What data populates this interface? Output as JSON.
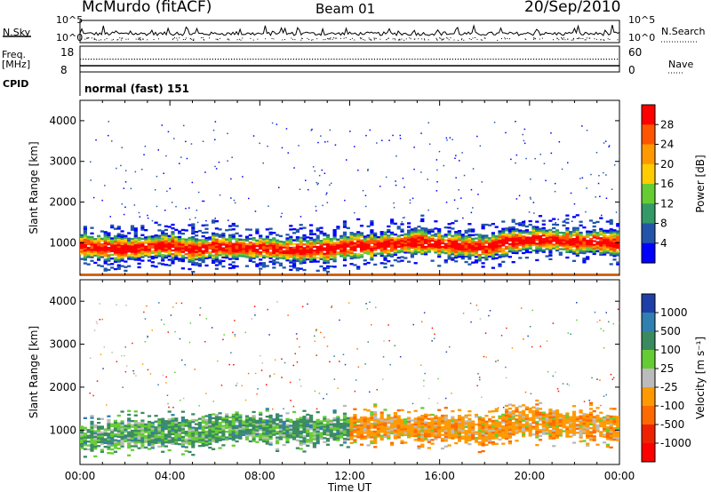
{
  "header": {
    "station": "McMurdo (fitACF)",
    "beam": "Beam 01",
    "date": "20/Sep/2010"
  },
  "strip": {
    "left_top_label": "N.Sky",
    "left_top_ticks": [
      "10^5",
      "10^0"
    ],
    "right_top_label": "N.Search",
    "right_top_ticks": [
      "10^5",
      "10^0"
    ],
    "freq_label": "Freq.",
    "freq_unit": "[MHz]",
    "freq_ticks": [
      "18",
      "8"
    ],
    "nave_label": "Nave",
    "nave_ticks": [
      "60",
      "0"
    ],
    "cpid_label": "CPID",
    "cpid_value": "normal (fast) 151"
  },
  "power_colorbar": {
    "label": "Power [dB]",
    "ticks": [
      "28",
      "24",
      "20",
      "16",
      "12",
      "8",
      "4"
    ],
    "colors": [
      "#ff0000",
      "#ff5500",
      "#ff9900",
      "#ffcc00",
      "#66cc33",
      "#339966",
      "#2255aa",
      "#0000ff"
    ]
  },
  "velocity_colorbar": {
    "label": "Velocity [m s⁻¹]",
    "ticks": [
      "1000",
      "500",
      "100",
      "25",
      "-25",
      "-100",
      "-500",
      "-1000"
    ],
    "colors": [
      "#1f3fa8",
      "#2f7fb0",
      "#3a8a60",
      "#66cc33",
      "#bbbbbb",
      "#ff9900",
      "#ff6a00",
      "#ee2200",
      "#ff0000"
    ]
  },
  "chart_data": [
    {
      "type": "heatmap",
      "panel": "power",
      "ylabel": "Slant Range [km]",
      "ylim": [
        200,
        4500
      ],
      "yticks": [
        1000,
        2000,
        3000,
        4000
      ],
      "xlim": [
        0,
        24
      ],
      "band_center_km": [
        [
          0,
          900
        ],
        [
          1,
          850
        ],
        [
          2,
          820
        ],
        [
          3,
          880
        ],
        [
          4,
          900
        ],
        [
          5,
          800
        ],
        [
          6,
          880
        ],
        [
          7,
          850
        ],
        [
          8,
          850
        ],
        [
          9,
          800
        ],
        [
          10,
          800
        ],
        [
          11,
          820
        ],
        [
          12,
          900
        ],
        [
          13,
          900
        ],
        [
          14,
          950
        ],
        [
          15,
          1000
        ],
        [
          16,
          950
        ],
        [
          17,
          900
        ],
        [
          18,
          850
        ],
        [
          19,
          1000
        ],
        [
          20,
          1050
        ],
        [
          21,
          1050
        ],
        [
          22,
          1000
        ],
        [
          23,
          1000
        ],
        [
          24,
          950
        ]
      ]
    },
    {
      "type": "heatmap",
      "panel": "velocity",
      "ylabel": "Slant Range [km]",
      "ylim": [
        200,
        4500
      ],
      "yticks": [
        1000,
        2000,
        3000,
        4000
      ],
      "xlabel": "Time UT",
      "xlim": [
        0,
        24
      ],
      "xticks": [
        "00:00",
        "04:00",
        "08:00",
        "12:00",
        "16:00",
        "20:00",
        "00:00"
      ],
      "band_center_km": [
        [
          0,
          800
        ],
        [
          1,
          850
        ],
        [
          2,
          900
        ],
        [
          3,
          900
        ],
        [
          4,
          950
        ],
        [
          5,
          900
        ],
        [
          6,
          1000
        ],
        [
          7,
          1050
        ],
        [
          8,
          1000
        ],
        [
          9,
          1000
        ],
        [
          10,
          950
        ],
        [
          11,
          1000
        ],
        [
          12,
          1000
        ],
        [
          13,
          1050
        ],
        [
          14,
          1050
        ],
        [
          15,
          1000
        ],
        [
          16,
          1050
        ],
        [
          17,
          1000
        ],
        [
          18,
          950
        ],
        [
          19,
          1100
        ],
        [
          20,
          1150
        ],
        [
          21,
          1100
        ],
        [
          22,
          1100
        ],
        [
          23,
          1050
        ],
        [
          24,
          1000
        ]
      ]
    }
  ]
}
